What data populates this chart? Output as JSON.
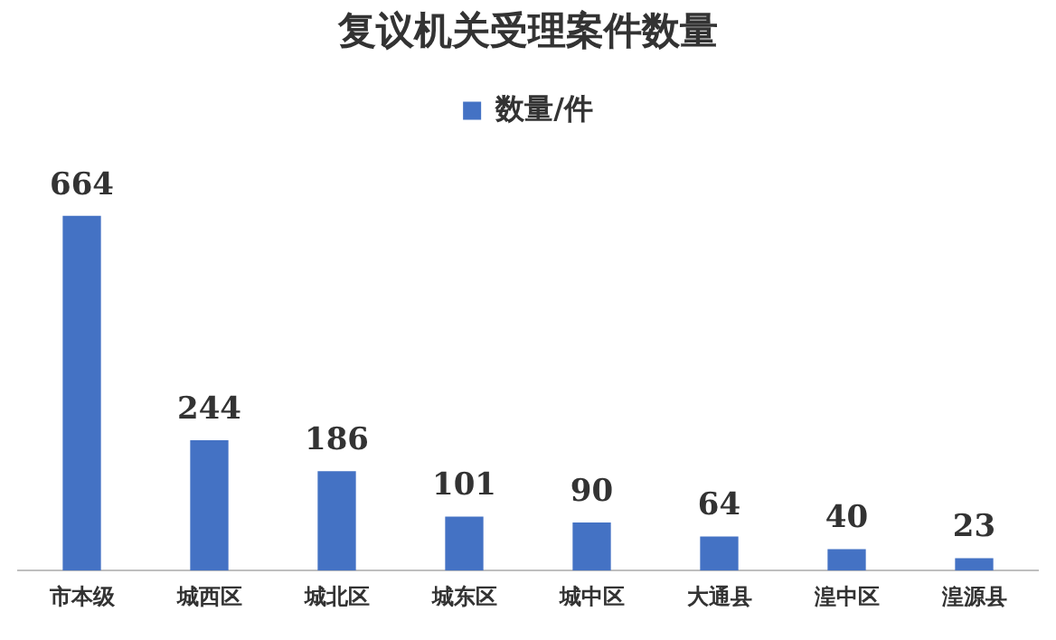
{
  "chart_data": {
    "type": "bar",
    "title": "复议机关受理案件数量",
    "categories": [
      "市本级",
      "城西区",
      "城北区",
      "城东区",
      "城中区",
      "大通县",
      "湟中区",
      "湟源县"
    ],
    "series": [
      {
        "name": "数量/件",
        "color": "#4472c4",
        "values": [
          664,
          244,
          186,
          101,
          90,
          64,
          40,
          23
        ]
      }
    ],
    "data_labels": true,
    "legend": "top",
    "grid": false
  }
}
